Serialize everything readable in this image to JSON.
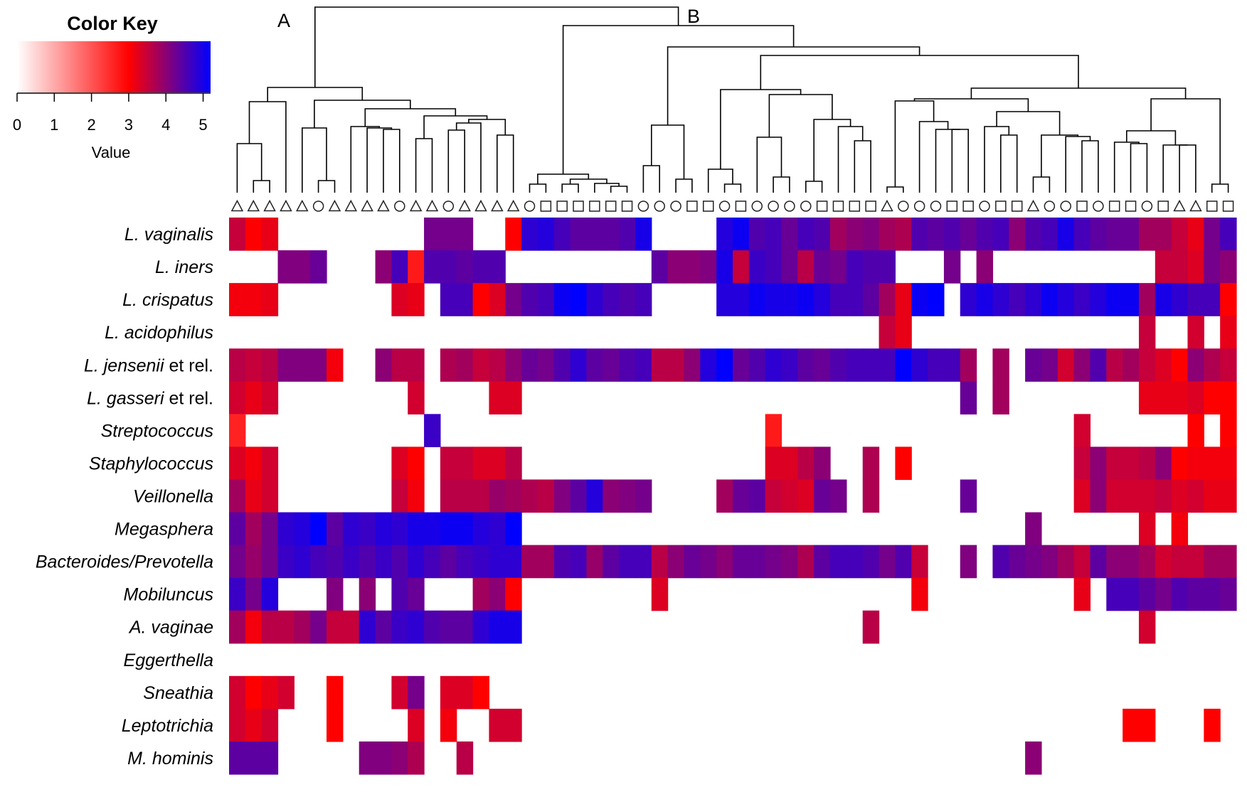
{
  "color_key": {
    "title": "Color Key",
    "axis_label": "Value",
    "ticks": [
      "0",
      "1",
      "2",
      "3",
      "4",
      "5"
    ],
    "range": [
      0,
      5.2
    ],
    "colors": [
      "#ffffff",
      "#ff0000",
      "#0000ff"
    ]
  },
  "branch_labels": [
    "A",
    "B"
  ],
  "chart_data": {
    "type": "heatmap",
    "title": "",
    "xlabel": "",
    "ylabel": "",
    "color_scale": {
      "min": 0,
      "max": 5.2,
      "low": "#ffffff",
      "mid": "#ff0000",
      "high": "#0000ff",
      "mid_value": 3
    },
    "rows": [
      {
        "label": "L. vaginalis",
        "italic": "L. vaginalis",
        "plain": ""
      },
      {
        "label": "L. iners",
        "italic": "L. iners",
        "plain": ""
      },
      {
        "label": "L. crispatus",
        "italic": "L. crispatus",
        "plain": ""
      },
      {
        "label": "L. acidophilus",
        "italic": "L. acidophilus",
        "plain": ""
      },
      {
        "label": "L. jensenii et rel.",
        "italic": "L. jensenii",
        "plain": " et rel."
      },
      {
        "label": "L. gasseri et rel.",
        "italic": "L. gasseri",
        "plain": " et rel."
      },
      {
        "label": "Streptococcus",
        "italic": "Streptococcus",
        "plain": ""
      },
      {
        "label": "Staphylococcus",
        "italic": "Staphylococcus",
        "plain": ""
      },
      {
        "label": "Veillonella",
        "italic": "Veillonella",
        "plain": ""
      },
      {
        "label": "Megasphera",
        "italic": "Megasphera",
        "plain": ""
      },
      {
        "label": "Bacteroides/Prevotella",
        "italic": "Bacteroides/Prevotella",
        "plain": ""
      },
      {
        "label": "Mobiluncus",
        "italic": "Mobiluncus",
        "plain": ""
      },
      {
        "label": "A. vaginae",
        "italic": "A. vaginae",
        "plain": ""
      },
      {
        "label": "Eggerthella",
        "italic": "Eggerthella",
        "plain": ""
      },
      {
        "label": "Sneathia",
        "italic": "Sneathia",
        "plain": ""
      },
      {
        "label": "Leptotrichia",
        "italic": "Leptotrichia",
        "plain": ""
      },
      {
        "label": "M. hominis",
        "italic": "M. hominis",
        "plain": ""
      }
    ],
    "column_symbols": [
      "triangle",
      "triangle",
      "triangle",
      "triangle",
      "triangle",
      "circle",
      "triangle",
      "triangle",
      "triangle",
      "triangle",
      "circle",
      "triangle",
      "triangle",
      "circle",
      "triangle",
      "triangle",
      "triangle",
      "triangle",
      "circle",
      "square",
      "square",
      "square",
      "square",
      "square",
      "square",
      "circle",
      "circle",
      "circle",
      "square",
      "square",
      "circle",
      "square",
      "circle",
      "circle",
      "circle",
      "circle",
      "square",
      "square",
      "square",
      "square",
      "triangle",
      "circle",
      "circle",
      "circle",
      "square",
      "square",
      "circle",
      "square",
      "square",
      "triangle",
      "circle",
      "circle",
      "square",
      "circle",
      "square",
      "square",
      "circle",
      "square",
      "triangle",
      "triangle",
      "square",
      "square"
    ],
    "values": [
      [
        3.5,
        3.0,
        3.2,
        0,
        0,
        0,
        0,
        0,
        0,
        0,
        0,
        0,
        4.2,
        4.2,
        4.2,
        0,
        0,
        3.0,
        4.8,
        4.9,
        4.6,
        4.4,
        4.4,
        4.4,
        4.5,
        5.0,
        0,
        0,
        0,
        0,
        4.9,
        5.1,
        4.5,
        4.6,
        4.3,
        4.6,
        4.5,
        3.8,
        4.0,
        4.1,
        3.8,
        3.7,
        4.5,
        4.4,
        4.5,
        4.3,
        4.5,
        4.6,
        4.0,
        4.5,
        4.6,
        5.0,
        4.6,
        4.4,
        4.3,
        4.3,
        3.8,
        3.8,
        3.5,
        3.2,
        4.2,
        4.6
      ],
      [
        0,
        0,
        0,
        4.1,
        4.1,
        4.3,
        0,
        0,
        0,
        4.0,
        4.6,
        2.7,
        4.5,
        4.5,
        4.4,
        4.5,
        4.5,
        0,
        0,
        0,
        0,
        0,
        0,
        0,
        0,
        0,
        4.4,
        4.0,
        4.0,
        4.1,
        5.0,
        3.5,
        4.7,
        4.6,
        4.3,
        3.6,
        4.3,
        4.2,
        4.6,
        4.5,
        4.5,
        0,
        0,
        0,
        4.2,
        0,
        4.0,
        0,
        0,
        0,
        0,
        0,
        0,
        0,
        0,
        0,
        0,
        3.5,
        3.5,
        3.3,
        4.2,
        4.0
      ],
      [
        3.1,
        3.1,
        3.2,
        0,
        0,
        0,
        0,
        0,
        0,
        0,
        3.3,
        3.2,
        0,
        4.6,
        4.6,
        3.0,
        3.3,
        4.2,
        4.5,
        4.6,
        5.1,
        5.2,
        4.8,
        4.6,
        4.5,
        4.6,
        0,
        0,
        0,
        0,
        4.9,
        4.9,
        5.1,
        5.0,
        5.0,
        5.1,
        4.9,
        4.6,
        4.6,
        4.4,
        3.8,
        3.2,
        5.1,
        5.2,
        0,
        4.8,
        5.0,
        4.8,
        4.6,
        4.8,
        5.1,
        4.9,
        4.7,
        4.9,
        5.1,
        5.1,
        3.8,
        5.0,
        4.8,
        4.6,
        4.6,
        3.0
      ],
      [
        0,
        0,
        0,
        0,
        0,
        0,
        0,
        0,
        0,
        0,
        0,
        0,
        0,
        0,
        0,
        0,
        0,
        0,
        0,
        0,
        0,
        0,
        0,
        0,
        0,
        0,
        0,
        0,
        0,
        0,
        0,
        0,
        0,
        0,
        0,
        0,
        0,
        0,
        0,
        0,
        3.5,
        3.2,
        0,
        0,
        0,
        0,
        0,
        0,
        0,
        0,
        0,
        0,
        0,
        0,
        0,
        0,
        3.5,
        0,
        0,
        3.4,
        0,
        3.2
      ],
      [
        3.6,
        3.5,
        3.6,
        4.1,
        4.1,
        4.1,
        3.1,
        0,
        0,
        4.0,
        3.6,
        3.6,
        0,
        3.7,
        3.8,
        3.5,
        3.6,
        4.0,
        4.3,
        4.2,
        4.5,
        4.8,
        4.4,
        4.3,
        4.5,
        4.6,
        3.6,
        3.6,
        4.0,
        4.9,
        5.2,
        4.3,
        4.5,
        4.8,
        4.7,
        4.4,
        4.3,
        4.5,
        4.6,
        4.6,
        4.6,
        5.2,
        4.8,
        4.6,
        4.6,
        3.8,
        0,
        3.8,
        0,
        4.3,
        4.2,
        3.4,
        4.0,
        4.5,
        3.6,
        3.8,
        3.5,
        3.3,
        3.0,
        4.0,
        3.7,
        3.5
      ],
      [
        3.4,
        3.2,
        3.4,
        0,
        0,
        0,
        0,
        0,
        0,
        0,
        0,
        3.4,
        0,
        0,
        0,
        0,
        3.3,
        3.3,
        0,
        0,
        0,
        0,
        0,
        0,
        0,
        0,
        0,
        0,
        0,
        0,
        0,
        0,
        0,
        0,
        0,
        0,
        0,
        0,
        0,
        0,
        0,
        0,
        0,
        0,
        0,
        4.3,
        0,
        3.8,
        0,
        0,
        0,
        0,
        0,
        0,
        0,
        0,
        3.2,
        3.2,
        3.2,
        3.3,
        3.0,
        3.0
      ],
      [
        2.6,
        0,
        0,
        0,
        0,
        0,
        0,
        0,
        0,
        0,
        0,
        0,
        4.7,
        0,
        0,
        0,
        0,
        0,
        0,
        0,
        0,
        0,
        0,
        0,
        0,
        0,
        0,
        0,
        0,
        0,
        0,
        0,
        0,
        2.7,
        0,
        0,
        0,
        0,
        0,
        0,
        0,
        0,
        0,
        0,
        0,
        0,
        0,
        0,
        0,
        0,
        0,
        0,
        3.4,
        0,
        0,
        0,
        0,
        0,
        0,
        3.0,
        0,
        3.0
      ],
      [
        3.3,
        3.1,
        3.4,
        0,
        0,
        0,
        0,
        0,
        0,
        0,
        3.3,
        3.0,
        0,
        3.5,
        3.5,
        3.3,
        3.3,
        3.6,
        0,
        0,
        0,
        0,
        0,
        0,
        0,
        0,
        0,
        0,
        0,
        0,
        0,
        0,
        0,
        3.3,
        3.3,
        3.6,
        4.0,
        0,
        0,
        3.7,
        0,
        3.0,
        0,
        0,
        0,
        0,
        0,
        0,
        0,
        0,
        0,
        0,
        3.5,
        4.0,
        3.5,
        3.5,
        3.6,
        4.0,
        3.0,
        3.1,
        3.1,
        3.1
      ],
      [
        3.8,
        3.2,
        3.4,
        0,
        0,
        0,
        0,
        0,
        0,
        0,
        3.5,
        3.1,
        0,
        3.6,
        3.6,
        3.6,
        3.9,
        3.8,
        3.7,
        3.6,
        4.1,
        4.4,
        4.9,
        4.0,
        4.1,
        4.2,
        0,
        0,
        0,
        0,
        3.8,
        4.3,
        4.4,
        3.5,
        3.4,
        3.3,
        4.3,
        4.2,
        0,
        3.7,
        0,
        0,
        0,
        0,
        0,
        4.3,
        0,
        0,
        0,
        0,
        0,
        0,
        3.3,
        4.0,
        3.4,
        3.4,
        3.4,
        3.5,
        3.3,
        3.4,
        3.2,
        3.2
      ],
      [
        4.4,
        3.8,
        4.2,
        4.8,
        4.9,
        5.2,
        4.4,
        4.8,
        4.7,
        4.9,
        4.8,
        5.0,
        5.0,
        5.1,
        5.1,
        4.9,
        4.8,
        5.2,
        0,
        0,
        0,
        0,
        0,
        0,
        0,
        0,
        0,
        0,
        0,
        0,
        0,
        0,
        0,
        0,
        0,
        0,
        0,
        0,
        0,
        0,
        0,
        0,
        0,
        0,
        0,
        0,
        0,
        0,
        0,
        4.1,
        0,
        0,
        0,
        0,
        0,
        0,
        3.3,
        0,
        3.1,
        0,
        0,
        0
      ],
      [
        4.2,
        3.9,
        4.2,
        4.7,
        4.8,
        4.6,
        4.5,
        4.7,
        4.5,
        4.7,
        4.5,
        4.8,
        4.6,
        4.4,
        4.6,
        4.7,
        4.8,
        4.8,
        3.8,
        3.8,
        4.5,
        4.6,
        3.9,
        4.4,
        4.6,
        4.6,
        3.6,
        4.0,
        4.3,
        4.2,
        4.0,
        4.3,
        4.3,
        4.2,
        4.1,
        3.7,
        4.4,
        4.6,
        4.6,
        4.5,
        4.2,
        4.5,
        3.5,
        0,
        0,
        4.1,
        0,
        4.5,
        4.3,
        4.2,
        4.1,
        3.8,
        3.5,
        4.4,
        4.0,
        4.0,
        3.8,
        3.4,
        3.5,
        3.5,
        3.8,
        3.8
      ],
      [
        4.7,
        4.2,
        4.9,
        0,
        0,
        0,
        4.1,
        0,
        4.0,
        0,
        4.5,
        4.3,
        0,
        0,
        0,
        3.8,
        4.0,
        3.0,
        0,
        0,
        0,
        0,
        0,
        0,
        0,
        0,
        3.3,
        0,
        0,
        0,
        0,
        0,
        0,
        0,
        0,
        0,
        0,
        0,
        0,
        0,
        0,
        0,
        3.1,
        0,
        0,
        0,
        0,
        0,
        0,
        0,
        0,
        0,
        3.2,
        0,
        4.6,
        4.6,
        4.4,
        4.2,
        4.5,
        4.4,
        4.4,
        4.3
      ],
      [
        3.8,
        3.1,
        3.6,
        3.6,
        3.8,
        4.2,
        3.5,
        3.5,
        4.8,
        4.4,
        4.7,
        4.8,
        4.5,
        4.4,
        4.4,
        4.8,
        5.0,
        5.0,
        0,
        0,
        0,
        0,
        0,
        0,
        0,
        0,
        0,
        0,
        0,
        0,
        0,
        0,
        0,
        0,
        0,
        0,
        0,
        0,
        0,
        3.6,
        0,
        0,
        0,
        0,
        0,
        0,
        0,
        0,
        0,
        0,
        0,
        0,
        0,
        0,
        0,
        0,
        3.4,
        0,
        0,
        0,
        0,
        0
      ],
      [
        0,
        0,
        0,
        0,
        0,
        0,
        0,
        0,
        0,
        0,
        0,
        0,
        0,
        0,
        0,
        0,
        0,
        0,
        0,
        0,
        0,
        0,
        0,
        0,
        0,
        0,
        0,
        0,
        0,
        0,
        0,
        0,
        0,
        0,
        0,
        0,
        0,
        0,
        0,
        0,
        0,
        0,
        0,
        0,
        0,
        0,
        0,
        0,
        0,
        0,
        0,
        0,
        0,
        0,
        0,
        0,
        0,
        0,
        0,
        0,
        0,
        0
      ],
      [
        3.4,
        3.0,
        3.2,
        3.4,
        0,
        0,
        3.0,
        0,
        0,
        0,
        3.4,
        4.2,
        0,
        3.3,
        3.3,
        3.0,
        0,
        0,
        0,
        0,
        0,
        0,
        0,
        0,
        0,
        0,
        0,
        0,
        0,
        0,
        0,
        0,
        0,
        0,
        0,
        0,
        0,
        0,
        0,
        0,
        0,
        0,
        0,
        0,
        0,
        0,
        0,
        0,
        0,
        0,
        0,
        0,
        0,
        0,
        0,
        0,
        0,
        0,
        0,
        0,
        0,
        0
      ],
      [
        3.4,
        3.2,
        3.4,
        0,
        0,
        0,
        3.0,
        0,
        0,
        0,
        0,
        3.3,
        0,
        3.1,
        0,
        0,
        3.4,
        3.4,
        0,
        0,
        0,
        0,
        0,
        0,
        0,
        0,
        0,
        0,
        0,
        0,
        0,
        0,
        0,
        0,
        0,
        0,
        0,
        0,
        0,
        0,
        0,
        0,
        0,
        0,
        0,
        0,
        0,
        0,
        0,
        0,
        0,
        0,
        0,
        0,
        0,
        3.0,
        3.0,
        0,
        0,
        0,
        3.0,
        0
      ],
      [
        4.4,
        4.4,
        4.4,
        0,
        0,
        0,
        0,
        0,
        4.1,
        4.1,
        4.0,
        3.7,
        0,
        0,
        3.6,
        0,
        0,
        0,
        0,
        0,
        0,
        0,
        0,
        0,
        0,
        0,
        0,
        0,
        0,
        0,
        0,
        0,
        0,
        0,
        0,
        0,
        0,
        0,
        0,
        0,
        0,
        0,
        0,
        0,
        0,
        0,
        0,
        0,
        0,
        4.0,
        0,
        0,
        0,
        0,
        0,
        0,
        0,
        0,
        0,
        0,
        0,
        0
      ]
    ]
  }
}
